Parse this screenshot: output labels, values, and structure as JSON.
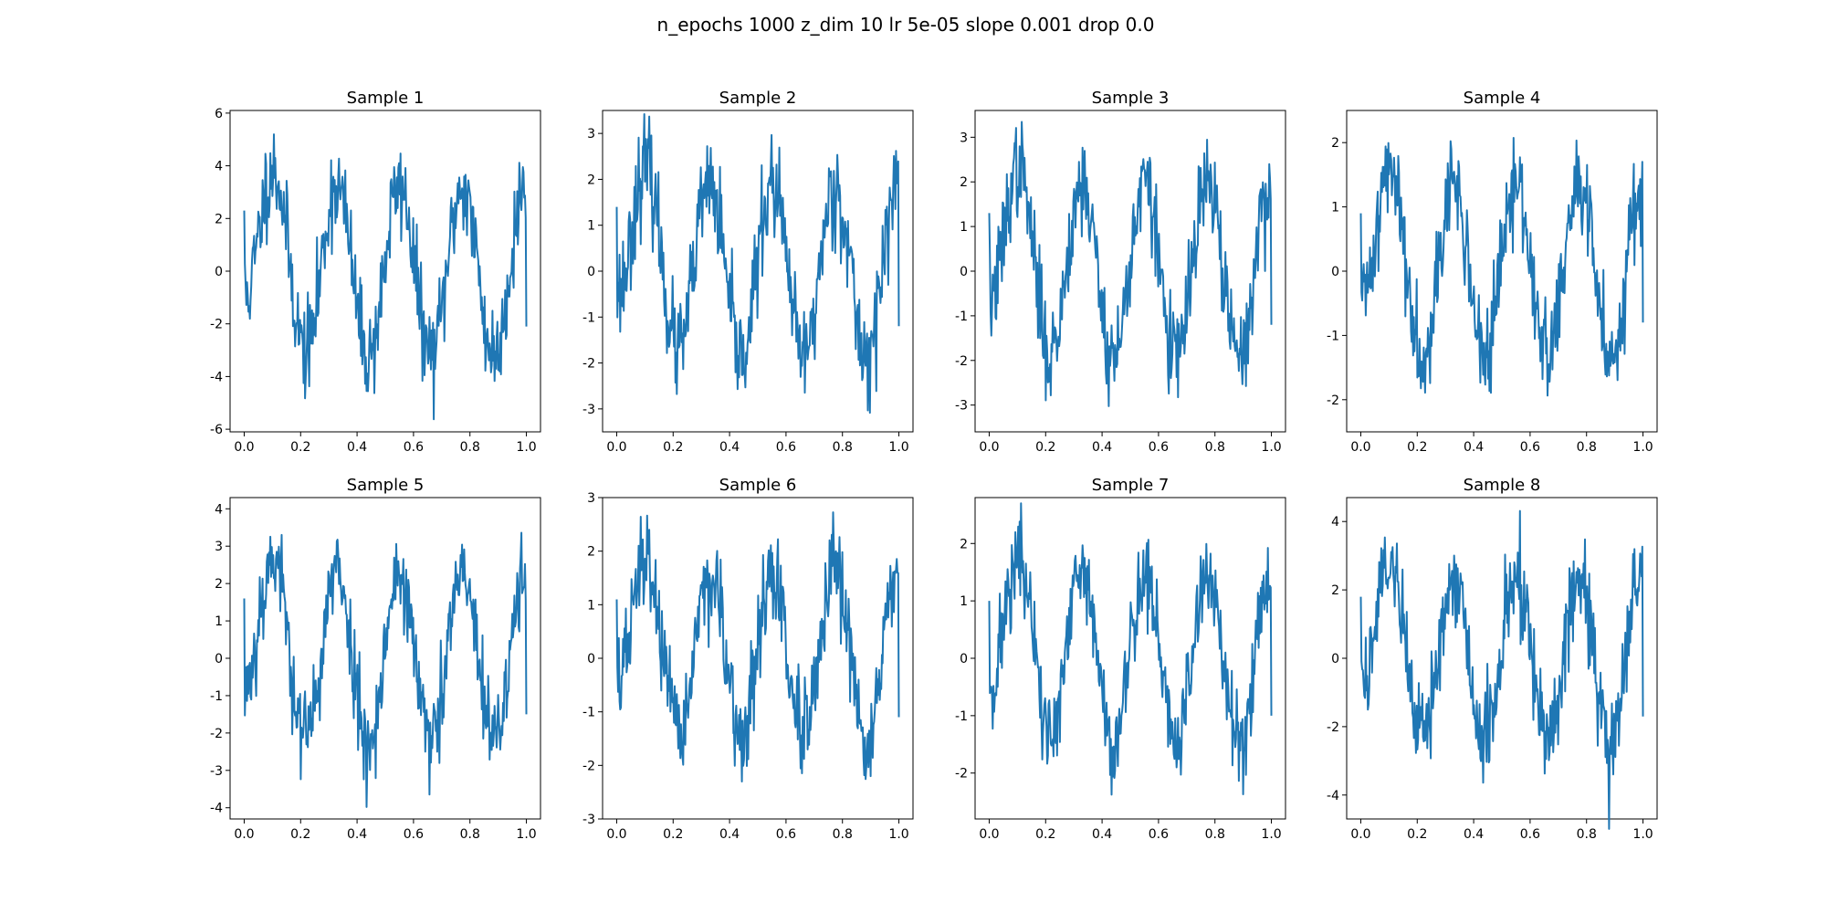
{
  "figure": {
    "suptitle": "n_epochs 1000 z_dim 10 lr 5e-05 slope 0.001 drop 0.0",
    "line_color": "#1f77b4"
  },
  "chart_data": [
    {
      "type": "line",
      "title": "Sample 1",
      "xlim": [
        -0.05,
        1.05
      ],
      "ylim": [
        -6.1,
        6.1
      ],
      "xticks": [
        "0.0",
        "0.2",
        "0.4",
        "0.6",
        "0.8",
        "1.0"
      ],
      "yticks": [
        -6,
        -4,
        -2,
        0,
        2,
        4,
        6
      ],
      "amplitude": 3.3,
      "noise": 1.0,
      "start_value": 2.3,
      "end_value": -2.1,
      "seed": 11
    },
    {
      "type": "line",
      "title": "Sample 2",
      "xlim": [
        -0.05,
        1.05
      ],
      "ylim": [
        -3.5,
        3.5
      ],
      "xticks": [
        "0.0",
        "0.2",
        "0.4",
        "0.6",
        "0.8",
        "1.0"
      ],
      "yticks": [
        -3,
        -2,
        -1,
        0,
        1,
        2,
        3
      ],
      "amplitude": 1.9,
      "noise": 0.6,
      "start_value": 1.4,
      "end_value": -1.2,
      "seed": 23
    },
    {
      "type": "line",
      "title": "Sample 3",
      "xlim": [
        -0.05,
        1.05
      ],
      "ylim": [
        -3.6,
        3.6
      ],
      "xticks": [
        "0.0",
        "0.2",
        "0.4",
        "0.6",
        "0.8",
        "1.0"
      ],
      "yticks": [
        -3,
        -2,
        -1,
        0,
        1,
        2,
        3
      ],
      "amplitude": 2.0,
      "noise": 0.6,
      "start_value": 1.3,
      "end_value": -1.2,
      "seed": 37
    },
    {
      "type": "line",
      "title": "Sample 4",
      "xlim": [
        -0.05,
        1.05
      ],
      "ylim": [
        -2.5,
        2.5
      ],
      "xticks": [
        "0.0",
        "0.2",
        "0.4",
        "0.6",
        "0.8",
        "1.0"
      ],
      "yticks": [
        -2,
        -1,
        0,
        1,
        2
      ],
      "amplitude": 1.35,
      "noise": 0.42,
      "start_value": 0.9,
      "end_value": -0.8,
      "seed": 41
    },
    {
      "type": "line",
      "title": "Sample 5",
      "xlim": [
        -0.05,
        1.05
      ],
      "ylim": [
        -4.3,
        4.3
      ],
      "xticks": [
        "0.0",
        "0.2",
        "0.4",
        "0.6",
        "0.8",
        "1.0"
      ],
      "yticks": [
        -4,
        -3,
        -2,
        -1,
        0,
        1,
        2,
        3,
        4
      ],
      "amplitude": 2.3,
      "noise": 0.7,
      "start_value": 1.6,
      "end_value": -1.5,
      "seed": 53
    },
    {
      "type": "line",
      "title": "Sample 6",
      "xlim": [
        -0.05,
        1.05
      ],
      "ylim": [
        -3.0,
        3.0
      ],
      "xticks": [
        "0.0",
        "0.2",
        "0.4",
        "0.6",
        "0.8",
        "1.0"
      ],
      "yticks": [
        -3,
        -2,
        -1,
        0,
        1,
        2,
        3
      ],
      "amplitude": 1.55,
      "noise": 0.5,
      "start_value": 1.1,
      "end_value": -1.1,
      "seed": 67
    },
    {
      "type": "line",
      "title": "Sample 7",
      "xlim": [
        -0.05,
        1.05
      ],
      "ylim": [
        -2.8,
        2.8
      ],
      "xticks": [
        "0.0",
        "0.2",
        "0.4",
        "0.6",
        "0.8",
        "1.0"
      ],
      "yticks": [
        -2,
        -1,
        0,
        1,
        2
      ],
      "amplitude": 1.5,
      "noise": 0.48,
      "start_value": 1.0,
      "end_value": -1.0,
      "seed": 71
    },
    {
      "type": "line",
      "title": "Sample 8",
      "xlim": [
        -0.05,
        1.05
      ],
      "ylim": [
        -4.7,
        4.7
      ],
      "xticks": [
        "0.0",
        "0.2",
        "0.4",
        "0.6",
        "0.8",
        "1.0"
      ],
      "yticks": [
        -4,
        -2,
        0,
        2,
        4
      ],
      "amplitude": 2.5,
      "noise": 0.8,
      "start_value": 1.8,
      "end_value": -1.7,
      "seed": 89
    }
  ]
}
